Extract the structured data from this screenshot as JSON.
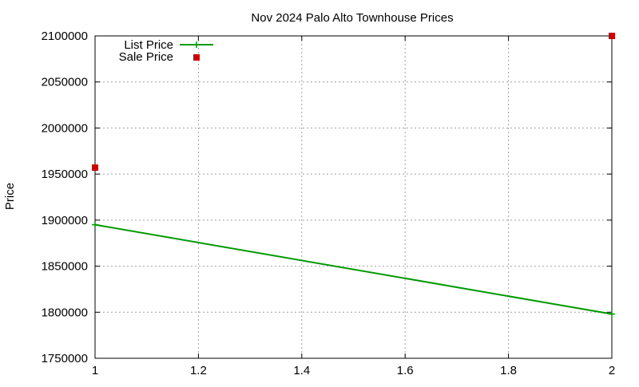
{
  "chart_data": {
    "type": "line",
    "title": "Nov 2024 Palo Alto Townhouse Prices",
    "xlabel": "",
    "ylabel": "Price",
    "xlim": [
      1,
      2
    ],
    "ylim": [
      1750000,
      2100000
    ],
    "x_ticks": [
      1,
      1.2,
      1.4,
      1.6,
      1.8,
      2
    ],
    "x_tick_labels": [
      "1",
      "1.2",
      "1.4",
      "1.6",
      "1.8",
      "2"
    ],
    "y_ticks": [
      1750000,
      1800000,
      1850000,
      1900000,
      1950000,
      2000000,
      2050000,
      2100000
    ],
    "y_tick_labels": [
      "1750000",
      "1800000",
      "1850000",
      "1900000",
      "1950000",
      "2000000",
      "2050000",
      "2100000"
    ],
    "grid": true,
    "legend_position": "top-left",
    "series": [
      {
        "name": "List Price",
        "style": "linespoints",
        "marker": "plus",
        "color": "#009900",
        "x": [
          1,
          2
        ],
        "y": [
          1895000,
          1798000
        ]
      },
      {
        "name": "Sale Price",
        "style": "points",
        "marker": "square",
        "color": "#cc0000",
        "x": [
          1,
          2
        ],
        "y": [
          1957000,
          2100000
        ]
      }
    ]
  }
}
